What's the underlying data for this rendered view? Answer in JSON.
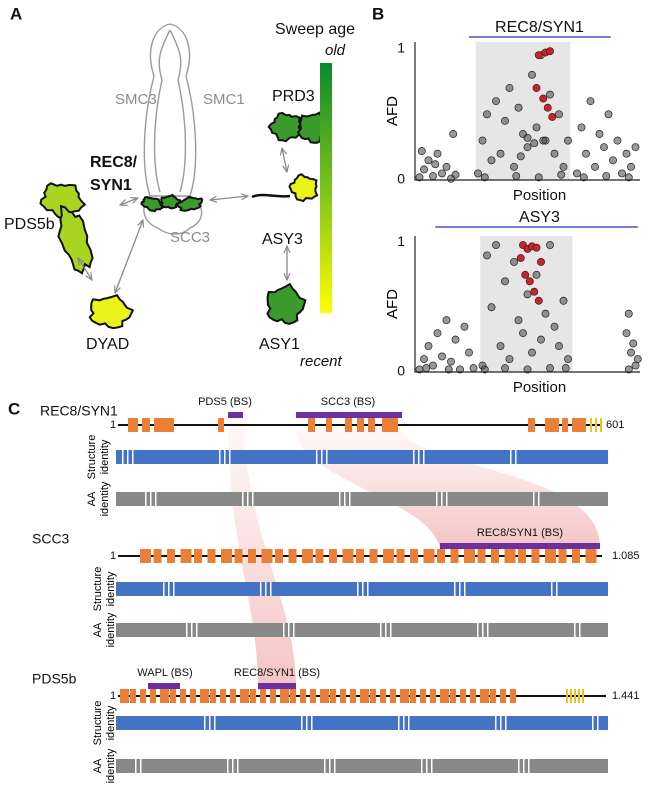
{
  "panel_a": {
    "label": "A",
    "cohesin": {
      "smc3": "SMC3",
      "smc1": "SMC1",
      "scc3": "SCC3",
      "rec8_line1": "REC8/",
      "rec8_line2": "SYN1"
    },
    "proteins": {
      "pds5b": "PDS5b",
      "dyad": "DYAD",
      "prd3": "PRD3",
      "asy3": "ASY3",
      "asy1": "ASY1"
    },
    "legend": {
      "title": "Sweep age",
      "high": "old",
      "low": "recent"
    }
  },
  "panel_b": {
    "label": "B",
    "plots": [
      {
        "title": "REC8/SYN1",
        "y_label": "AFD",
        "x_label": "Position",
        "ylim": [
          0,
          1.05
        ],
        "yticks": [
          0,
          1
        ],
        "xlim": [
          0,
          100
        ],
        "region": [
          27,
          69
        ],
        "span": [
          24,
          87
        ],
        "points": [
          [
            2,
            0.02
          ],
          [
            4,
            0.08
          ],
          [
            6,
            0.15
          ],
          [
            8,
            0.03
          ],
          [
            10,
            0.2
          ],
          [
            12,
            0.05
          ],
          [
            14,
            0.1
          ],
          [
            16,
            0.01
          ],
          [
            18,
            0.04
          ],
          [
            3,
            0.22
          ],
          [
            9,
            0.12
          ],
          [
            17,
            0.35
          ],
          [
            28,
            0.05
          ],
          [
            30,
            0.3
          ],
          [
            32,
            0.5
          ],
          [
            34,
            0.15
          ],
          [
            36,
            0.6
          ],
          [
            38,
            0.2
          ],
          [
            40,
            0.45
          ],
          [
            42,
            0.7
          ],
          [
            44,
            0.1
          ],
          [
            46,
            0.55
          ],
          [
            48,
            0.35
          ],
          [
            50,
            0.25
          ],
          [
            52,
            0.8
          ],
          [
            54,
            0.4
          ],
          [
            56,
            0.95
          ],
          [
            58,
            0.3
          ],
          [
            60,
            0.65
          ],
          [
            62,
            0.2
          ],
          [
            64,
            0.5
          ],
          [
            66,
            0.1
          ],
          [
            68,
            0.3
          ],
          [
            31,
            0.02
          ],
          [
            45,
            0.03
          ],
          [
            55,
            0.02
          ],
          [
            65,
            0.04
          ],
          [
            50,
            0.32
          ],
          [
            53,
            0.28
          ],
          [
            57,
            0.3
          ],
          [
            47,
            0.18
          ],
          [
            72,
            0.05
          ],
          [
            74,
            0.4
          ],
          [
            76,
            0.2
          ],
          [
            78,
            0.6
          ],
          [
            80,
            0.1
          ],
          [
            82,
            0.35
          ],
          [
            84,
            0.25
          ],
          [
            86,
            0.5
          ],
          [
            88,
            0.15
          ],
          [
            90,
            0.3
          ],
          [
            92,
            0.05
          ],
          [
            94,
            0.2
          ],
          [
            96,
            0.1
          ],
          [
            98,
            0.25
          ],
          [
            75,
            0.02
          ],
          [
            85,
            0.03
          ],
          [
            95,
            0.02
          ]
        ],
        "red_points": [
          [
            55,
            0.95
          ],
          [
            58,
            0.97
          ],
          [
            60,
            0.98
          ],
          [
            57,
            0.62
          ],
          [
            59,
            0.55
          ],
          [
            61,
            0.48
          ],
          [
            54,
            0.7
          ]
        ]
      },
      {
        "title": "ASY3",
        "y_label": "AFD",
        "x_label": "Position",
        "ylim": [
          0,
          1.05
        ],
        "yticks": [
          0,
          1
        ],
        "xlim": [
          0,
          100
        ],
        "region": [
          29,
          70
        ],
        "span": [
          9,
          99
        ],
        "points": [
          [
            2,
            0.02
          ],
          [
            4,
            0.1
          ],
          [
            6,
            0.2
          ],
          [
            8,
            0.05
          ],
          [
            10,
            0.3
          ],
          [
            12,
            0.12
          ],
          [
            14,
            0.4
          ],
          [
            16,
            0.08
          ],
          [
            18,
            0.25
          ],
          [
            20,
            0.02
          ],
          [
            22,
            0.35
          ],
          [
            24,
            0.15
          ],
          [
            26,
            0.03
          ],
          [
            5,
            0.03
          ],
          [
            15,
            0.02
          ],
          [
            30,
            0.05
          ],
          [
            32,
            0.9
          ],
          [
            34,
            0.5
          ],
          [
            36,
            0.98
          ],
          [
            38,
            0.2
          ],
          [
            40,
            0.7
          ],
          [
            42,
            0.1
          ],
          [
            44,
            0.85
          ],
          [
            46,
            0.4
          ],
          [
            48,
            0.3
          ],
          [
            50,
            0.6
          ],
          [
            52,
            0.15
          ],
          [
            54,
            0.75
          ],
          [
            56,
            0.25
          ],
          [
            58,
            0.45
          ],
          [
            60,
            0.98
          ],
          [
            62,
            0.35
          ],
          [
            64,
            0.2
          ],
          [
            66,
            0.55
          ],
          [
            68,
            0.1
          ],
          [
            31,
            0.02
          ],
          [
            40,
            0.03
          ],
          [
            50,
            0.02
          ],
          [
            60,
            0.03
          ],
          [
            67,
            0.03
          ],
          [
            94,
            0.3
          ],
          [
            95,
            0.45
          ],
          [
            96,
            0.15
          ],
          [
            97,
            0.22
          ],
          [
            98,
            0.05
          ],
          [
            95,
            0.02
          ],
          [
            99,
            0.1
          ]
        ],
        "red_points": [
          [
            48,
            0.98
          ],
          [
            50,
            0.95
          ],
          [
            52,
            0.97
          ],
          [
            54,
            0.96
          ],
          [
            49,
            0.75
          ],
          [
            51,
            0.7
          ],
          [
            53,
            0.62
          ],
          [
            55,
            0.55
          ],
          [
            56,
            0.85
          ],
          [
            47,
            0.88
          ]
        ]
      }
    ]
  },
  "panel_c": {
    "label": "C",
    "proteins": [
      {
        "name": "REC8/SYN1",
        "start": "1",
        "end": "601",
        "sites": [
          "PDS5 (BS)",
          "SCC3 (BS)"
        ],
        "track_labels": [
          [
            "Structure",
            "identity"
          ],
          [
            "AA",
            "identity"
          ]
        ]
      },
      {
        "name": "SCC3",
        "start": "1",
        "end": "1.085",
        "sites": [
          "REC8/SYN1 (BS)"
        ],
        "track_labels": [
          [
            "Structure",
            "identity"
          ],
          [
            "AA",
            "identity"
          ]
        ]
      },
      {
        "name": "PDS5b",
        "start": "1",
        "end": "1.441",
        "sites": [
          "WAPL (BS)",
          "REC8/SYN1 (BS)"
        ],
        "track_labels": [
          [
            "Structure",
            "identity"
          ],
          [
            "AA",
            "identity"
          ]
        ]
      }
    ]
  }
}
